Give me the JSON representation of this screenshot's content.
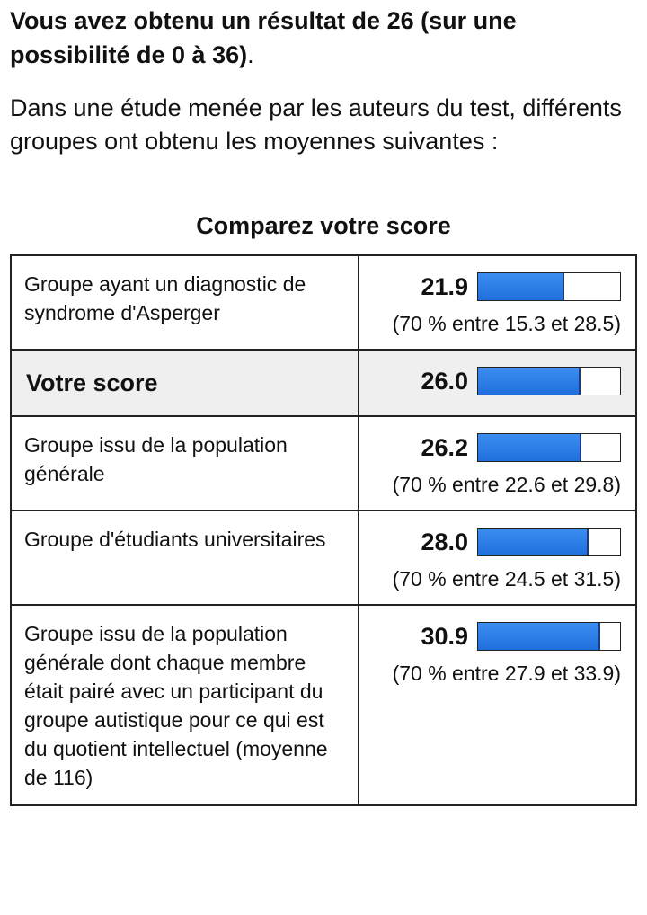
{
  "result": {
    "text": "Vous avez obtenu un résultat de 26 (sur une possibilité de 0 à 36)",
    "tail": "."
  },
  "intro": "Dans une étude menée par les auteurs du test, différents groupes ont obtenu les moyennes suivantes :",
  "scale": [
    0,
    36
  ],
  "table": {
    "caption": "Comparez votre score",
    "rows": [
      {
        "label": "Groupe ayant un diagnostic de syndrome d'Asperger",
        "value": 21.9,
        "range": "(70 % entre 15.3 et 28.5)"
      },
      {
        "label": "Votre score",
        "value": 26,
        "value_label": "26.0",
        "highlight": true
      },
      {
        "label": "Groupe issu de la population générale",
        "value": 26.2,
        "range": "(70 % entre 22.6 et 29.8)"
      },
      {
        "label": "Groupe d'étudiants universitaires",
        "value": 28,
        "value_label": "28.0",
        "range": "(70 % entre 24.5 et 31.5)"
      },
      {
        "label": "Groupe issu de la population générale dont chaque membre était pairé avec un participant du groupe autistique pour ce qui est du quotient intellectuel (moyenne de 116)",
        "value": 30.9,
        "range": "(70 % entre 27.9 et 33.9)"
      }
    ]
  }
}
